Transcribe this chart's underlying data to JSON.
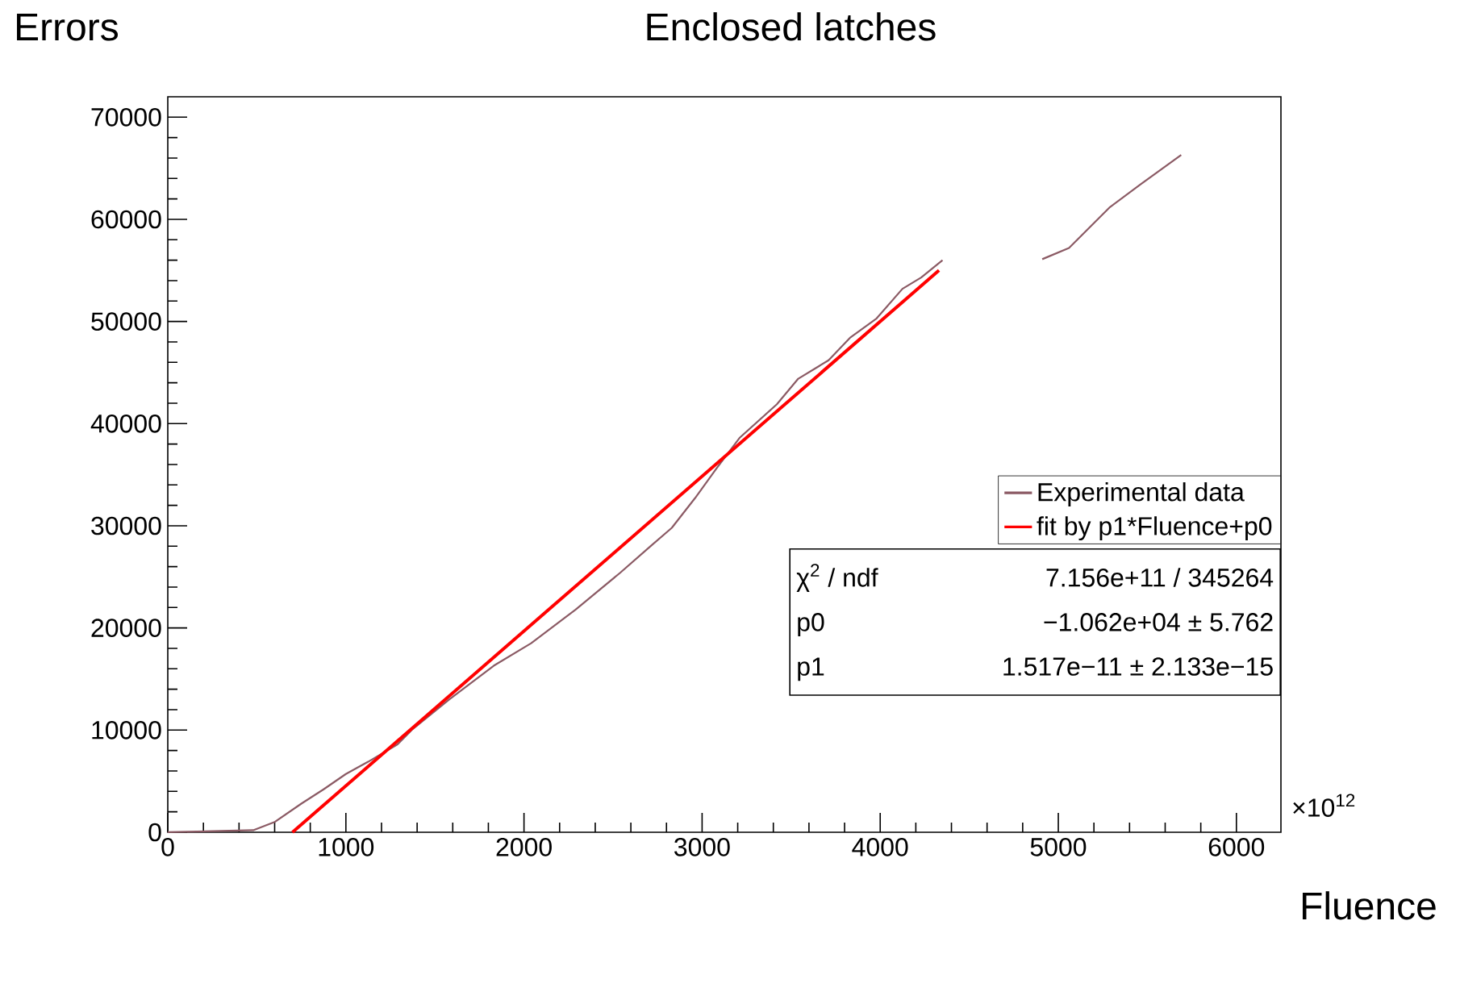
{
  "chart_data": {
    "type": "line",
    "title": "Enclosed latches",
    "xlabel": "Fluence",
    "ylabel": "Errors",
    "xlim": [
      0,
      6250
    ],
    "ylim": [
      0,
      72000
    ],
    "xticks": [
      0,
      1000,
      2000,
      3000,
      4000,
      5000,
      6000
    ],
    "yticks": [
      0,
      10000,
      20000,
      30000,
      40000,
      50000,
      60000,
      70000
    ],
    "legend": "right",
    "grid": false,
    "marker": "none",
    "series": [
      {
        "name": "Experimental data",
        "color": "#8b5a64",
        "line_style": "solid",
        "x": [
          0,
          480,
          600,
          750,
          875,
          1000,
          1125,
          1290,
          1375,
          1580,
          1830,
          2040,
          2290,
          2540,
          2710,
          2830,
          2960,
          3080,
          3210,
          3420,
          3540,
          3710,
          3830,
          3980,
          4125,
          4230,
          4350,
          4600,
          4910,
          5060,
          5290,
          5460,
          5690
        ],
        "values": [
          0,
          200,
          1000,
          2800,
          4200,
          5700,
          6900,
          8600,
          10100,
          13000,
          16300,
          18500,
          21800,
          25400,
          28000,
          29800,
          32700,
          35600,
          38600,
          41900,
          44400,
          46200,
          48400,
          50300,
          53200,
          54300,
          56000,
          null,
          56100,
          57200,
          61200,
          63400,
          66300
        ]
      },
      {
        "name": "fit by p1*Fluence+p0",
        "color": "#ff0000",
        "line_style": "solid",
        "x": [
          700,
          4330
        ],
        "values": [
          0,
          55000
        ]
      }
    ],
    "annotations": [
      "×10$^{12}$",
      "χ$^{2}$ / ndf",
      "7.156e+11 / 345264",
      "p0",
      "−1.062e+04 ± 5.762",
      "p1",
      "1.517e−11 ± 2.133e−15"
    ]
  }
}
